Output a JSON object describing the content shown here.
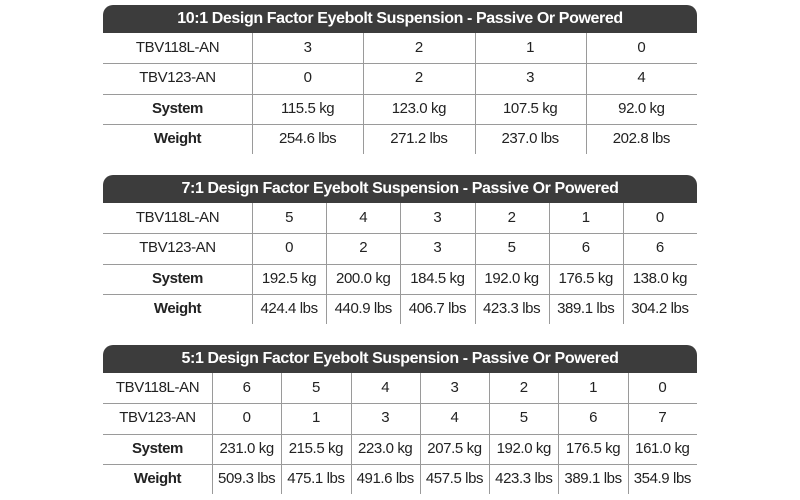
{
  "tables": [
    {
      "title": "10:1 Design Factor Eyebolt Suspension - Passive Or Powered",
      "rows": [
        [
          "TBV118L-AN",
          "3",
          "2",
          "1",
          "0"
        ],
        [
          "TBV123-AN",
          "0",
          "2",
          "3",
          "4"
        ],
        [
          "System",
          "115.5 kg",
          "123.0 kg",
          "107.5 kg",
          "92.0 kg"
        ],
        [
          "Weight",
          "254.6 lbs",
          "271.2 lbs",
          "237.0 lbs",
          "202.8 lbs"
        ]
      ]
    },
    {
      "title": "7:1 Design Factor Eyebolt Suspension - Passive Or Powered",
      "rows": [
        [
          "TBV118L-AN",
          "5",
          "4",
          "3",
          "2",
          "1",
          "0"
        ],
        [
          "TBV123-AN",
          "0",
          "2",
          "3",
          "5",
          "6",
          "6"
        ],
        [
          "System",
          "192.5 kg",
          "200.0 kg",
          "184.5 kg",
          "192.0 kg",
          "176.5 kg",
          "138.0 kg"
        ],
        [
          "Weight",
          "424.4 lbs",
          "440.9 lbs",
          "406.7 lbs",
          "423.3 lbs",
          "389.1 lbs",
          "304.2 lbs"
        ]
      ]
    },
    {
      "title": "5:1 Design Factor Eyebolt Suspension - Passive Or Powered",
      "rows": [
        [
          "TBV118L-AN",
          "6",
          "5",
          "4",
          "3",
          "2",
          "1",
          "0"
        ],
        [
          "TBV123-AN",
          "0",
          "1",
          "3",
          "4",
          "5",
          "6",
          "7"
        ],
        [
          "System",
          "231.0 kg",
          "215.5 kg",
          "223.0 kg",
          "207.5 kg",
          "192.0 kg",
          "176.5 kg",
          "161.0 kg"
        ],
        [
          "Weight",
          "509.3 lbs",
          "475.1 lbs",
          "491.6 lbs",
          "457.5 lbs",
          "423.3 lbs",
          "389.1 lbs",
          "354.9 lbs"
        ]
      ]
    }
  ]
}
